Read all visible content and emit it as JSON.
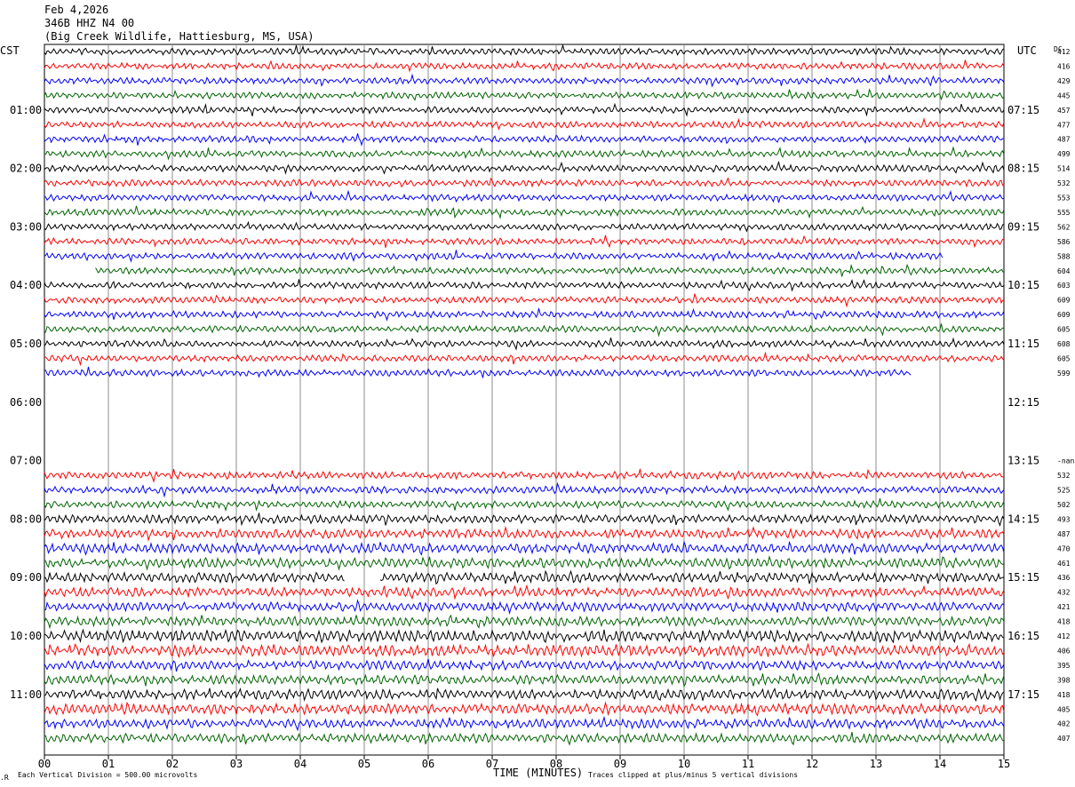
{
  "header": {
    "date": "Feb 4,2026",
    "channel": "346B HHZ N4 00",
    "station": "(Big Creek Wildlife, Hattiesburg, MS, USA)"
  },
  "left_tz": "CST",
  "right_tz": "UTC",
  "dc_label": "DC",
  "footer": {
    "division": "Each Vertical Division =  500.00 microvolts",
    "xlabel": "TIME (MINUTES)",
    "clip": "Traces clipped at plus/minus 5 vertical divisions",
    "corner": ".R"
  },
  "colors": {
    "black": "#000000",
    "red": "#ff0000",
    "blue": "#0000ff",
    "green": "#006400",
    "grid": "#8c8c8c"
  },
  "chart_data": {
    "type": "line",
    "title": "",
    "xlabel": "TIME (MINUTES)",
    "xlim": [
      0,
      15
    ],
    "x_ticks": [
      "00",
      "01",
      "02",
      "03",
      "04",
      "05",
      "06",
      "07",
      "08",
      "09",
      "10",
      "11",
      "12",
      "13",
      "14",
      "15"
    ],
    "minutes_per_line": 15,
    "color_cycle": [
      "black",
      "red",
      "blue",
      "green"
    ],
    "hour_labels": [
      {
        "row": 4,
        "cst": "01:00",
        "utc": "07:15"
      },
      {
        "row": 8,
        "cst": "02:00",
        "utc": "08:15"
      },
      {
        "row": 12,
        "cst": "03:00",
        "utc": "09:15"
      },
      {
        "row": 16,
        "cst": "04:00",
        "utc": "10:15"
      },
      {
        "row": 20,
        "cst": "05:00",
        "utc": "11:15"
      },
      {
        "row": 24,
        "cst": "06:00",
        "utc": "12:15"
      },
      {
        "row": 28,
        "cst": "07:00",
        "utc": "13:15"
      },
      {
        "row": 32,
        "cst": "08:00",
        "utc": "14:15"
      },
      {
        "row": 36,
        "cst": "09:00",
        "utc": "15:15"
      },
      {
        "row": 40,
        "cst": "10:00",
        "utc": "16:15"
      },
      {
        "row": 44,
        "cst": "11:00",
        "utc": "17:15"
      }
    ],
    "rows": [
      {
        "dc": "412",
        "start": 0,
        "end": 15,
        "amp": 1.0
      },
      {
        "dc": "416",
        "start": 0,
        "end": 15,
        "amp": 1.0
      },
      {
        "dc": "429",
        "start": 0,
        "end": 15,
        "amp": 1.0
      },
      {
        "dc": "445",
        "start": 0,
        "end": 15,
        "amp": 1.0
      },
      {
        "dc": "457",
        "start": 0,
        "end": 15,
        "amp": 1.0
      },
      {
        "dc": "477",
        "start": 0,
        "end": 15,
        "amp": 1.0
      },
      {
        "dc": "487",
        "start": 0,
        "end": 15,
        "amp": 1.0
      },
      {
        "dc": "499",
        "start": 0,
        "end": 15,
        "amp": 1.0
      },
      {
        "dc": "514",
        "start": 0,
        "end": 15,
        "amp": 1.0
      },
      {
        "dc": "532",
        "start": 0,
        "end": 15,
        "amp": 1.0
      },
      {
        "dc": "553",
        "start": 0,
        "end": 15,
        "amp": 1.0
      },
      {
        "dc": "555",
        "start": 0,
        "end": 15,
        "amp": 1.0
      },
      {
        "dc": "562",
        "start": 0,
        "end": 15,
        "amp": 1.0
      },
      {
        "dc": "586",
        "start": 0,
        "end": 15,
        "amp": 1.0
      },
      {
        "dc": "588",
        "start": 0,
        "end": 14.05,
        "amp": 1.0
      },
      {
        "dc": "604",
        "start": 0.8,
        "end": 15,
        "amp": 1.0
      },
      {
        "dc": "603",
        "start": 0,
        "end": 15,
        "amp": 1.0
      },
      {
        "dc": "609",
        "start": 0,
        "end": 15,
        "amp": 1.0
      },
      {
        "dc": "609",
        "start": 0,
        "end": 15,
        "amp": 1.0
      },
      {
        "dc": "605",
        "start": 0,
        "end": 15,
        "amp": 1.0
      },
      {
        "dc": "608",
        "start": 0,
        "end": 15,
        "amp": 1.0
      },
      {
        "dc": "605",
        "start": 0,
        "end": 15,
        "amp": 1.0
      },
      {
        "dc": "599",
        "start": 0,
        "end": 13.55,
        "amp": 1.0
      },
      {
        "dc": "",
        "start": 0,
        "end": 0,
        "amp": 0
      },
      {
        "dc": "",
        "start": 0,
        "end": 0,
        "amp": 0
      },
      {
        "dc": "",
        "start": 0,
        "end": 0,
        "amp": 0
      },
      {
        "dc": "",
        "start": 0,
        "end": 0,
        "amp": 0
      },
      {
        "dc": "",
        "start": 0,
        "end": 0,
        "amp": 0
      },
      {
        "dc": "-nan",
        "start": 0,
        "end": 0,
        "amp": 0
      },
      {
        "dc": "532",
        "start": 0,
        "end": 15,
        "amp": 1.1
      },
      {
        "dc": "525",
        "start": 0,
        "end": 15,
        "amp": 1.1
      },
      {
        "dc": "502",
        "start": 0,
        "end": 15,
        "amp": 1.1
      },
      {
        "dc": "493",
        "start": 0,
        "end": 15,
        "amp": 1.3
      },
      {
        "dc": "487",
        "start": 0,
        "end": 15,
        "amp": 1.4
      },
      {
        "dc": "470",
        "start": 0,
        "end": 15,
        "amp": 1.5
      },
      {
        "dc": "461",
        "start": 0,
        "end": 15,
        "amp": 1.5
      },
      {
        "dc": "436",
        "start": 0,
        "end": 15,
        "amp": 1.5,
        "gap": [
          4.7,
          5.25
        ]
      },
      {
        "dc": "432",
        "start": 0,
        "end": 15,
        "amp": 1.4
      },
      {
        "dc": "421",
        "start": 0,
        "end": 15,
        "amp": 1.4
      },
      {
        "dc": "418",
        "start": 0,
        "end": 15,
        "amp": 1.4
      },
      {
        "dc": "412",
        "start": 0,
        "end": 15,
        "amp": 1.8
      },
      {
        "dc": "406",
        "start": 0,
        "end": 15,
        "amp": 1.7
      },
      {
        "dc": "395",
        "start": 0,
        "end": 15,
        "amp": 1.4
      },
      {
        "dc": "398",
        "start": 0,
        "end": 15,
        "amp": 1.4
      },
      {
        "dc": "418",
        "start": 0,
        "end": 15,
        "amp": 1.5
      },
      {
        "dc": "405",
        "start": 0,
        "end": 15,
        "amp": 1.6
      },
      {
        "dc": "402",
        "start": 0,
        "end": 15,
        "amp": 1.4
      },
      {
        "dc": "407",
        "start": 0,
        "end": 15,
        "amp": 1.4
      }
    ]
  }
}
